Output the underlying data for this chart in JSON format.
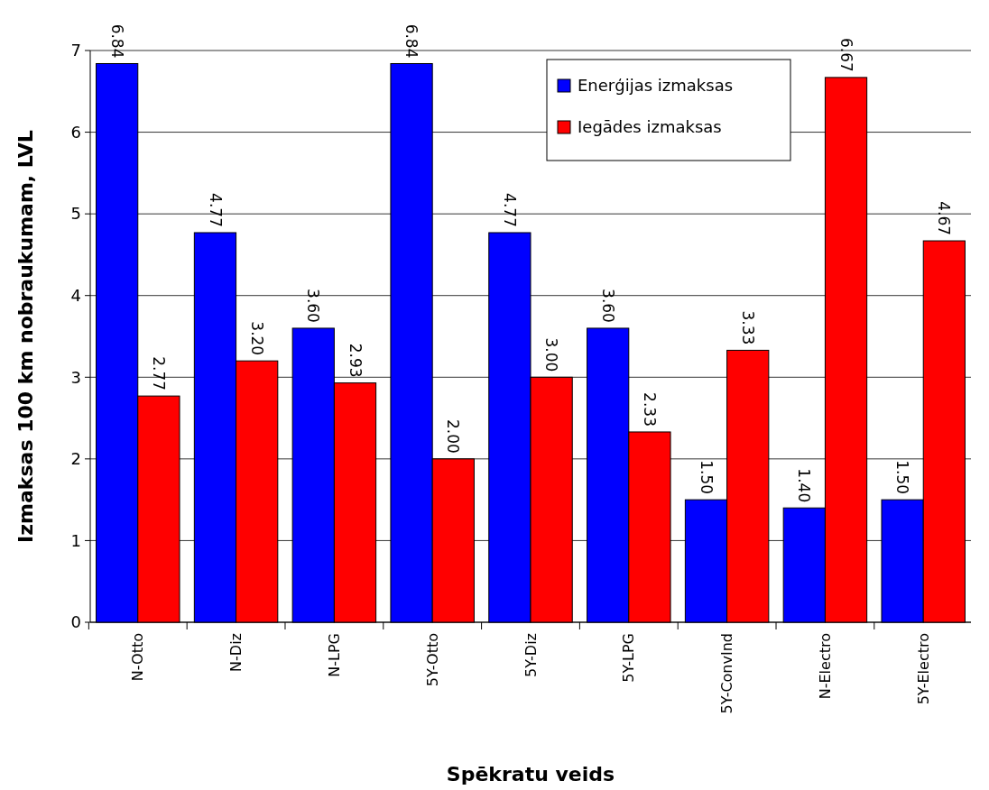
{
  "chart_data": {
    "type": "bar",
    "xlabel": "Spēkratu veids",
    "ylabel": "Izmaksas 100 km nobraukumam, LVL",
    "categories": [
      "N-Otto",
      "N-Diz",
      "N-LPG",
      "5Y-Otto",
      "5Y-Diz",
      "5Y-LPG",
      "5Y-ConvInd",
      "N-Electro",
      "5Y-Electro"
    ],
    "series": [
      {
        "name": "Enerģijas izmaksas",
        "color": "#0000ff",
        "values": [
          6.84,
          4.77,
          3.6,
          6.84,
          4.77,
          3.6,
          1.5,
          1.4,
          1.5
        ],
        "value_labels": [
          "6.84",
          "4.77",
          "3.60",
          "6.84",
          "4.77",
          "3.60",
          "1.50",
          "1.40",
          "1.50"
        ]
      },
      {
        "name": "Iegādes izmaksas",
        "color": "#ff0000",
        "values": [
          2.77,
          3.2,
          2.93,
          2.0,
          3.0,
          2.33,
          3.33,
          6.67,
          4.67
        ],
        "value_labels": [
          "2.77",
          "3.20",
          "2.93",
          "2.00",
          "3.00",
          "2.33",
          "3.33",
          "6.67",
          "4.67"
        ]
      }
    ],
    "ylim": [
      0,
      7
    ],
    "yticks": [
      0,
      1,
      2,
      3,
      4,
      5,
      6,
      7
    ],
    "grid": "y",
    "legend": "top right"
  }
}
